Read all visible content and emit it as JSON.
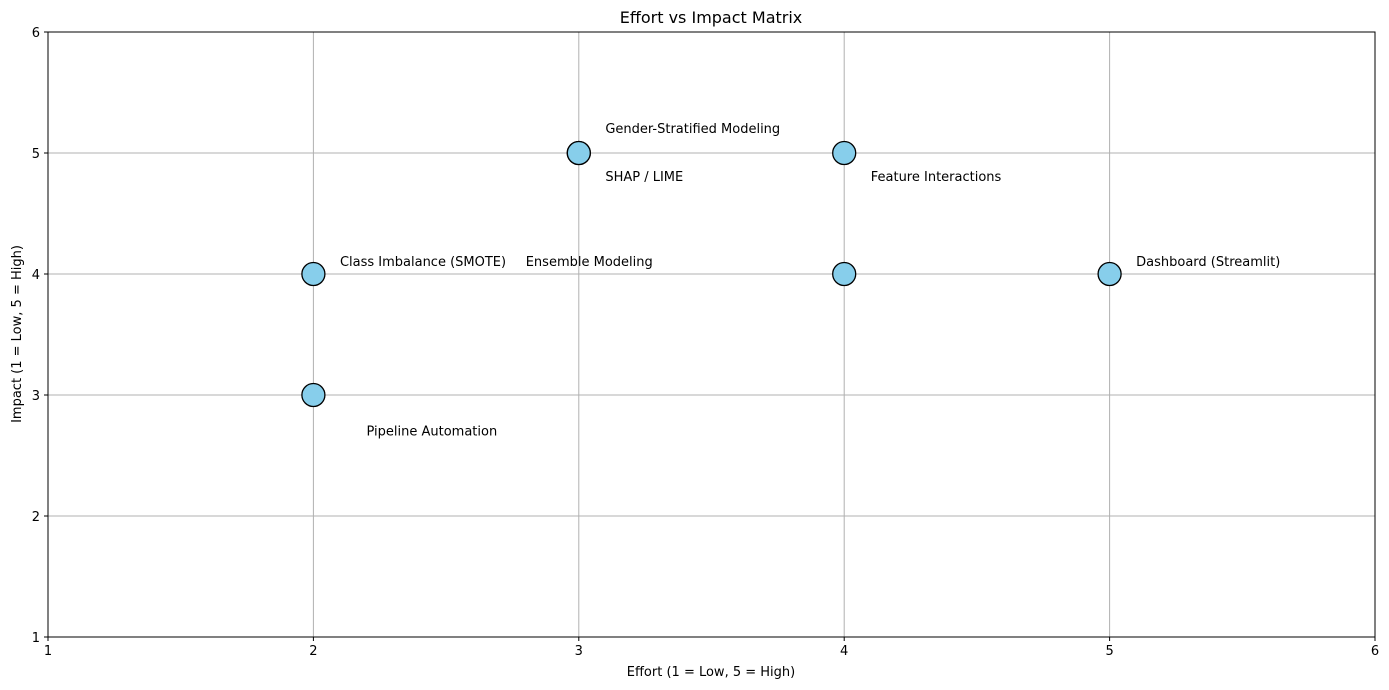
{
  "chart_data": {
    "type": "scatter",
    "title": "Effort vs Impact Matrix",
    "xlabel": "Effort (1 = Low, 5 = High)",
    "ylabel": "Impact (1 = Low, 5 = High)",
    "xlim": [
      1,
      6
    ],
    "ylim": [
      1,
      6
    ],
    "xticks": [
      "1",
      "2",
      "3",
      "4",
      "5",
      "6"
    ],
    "yticks": [
      "1",
      "2",
      "3",
      "4",
      "5",
      "6"
    ],
    "grid": true,
    "marker_color": "#87ceeb",
    "marker_edge_color": "#000000",
    "grid_color": "#b0b0b0",
    "points": [
      {
        "x": 2,
        "y": 4
      },
      {
        "x": 3,
        "y": 5
      },
      {
        "x": 3,
        "y": 5
      },
      {
        "x": 4,
        "y": 5
      },
      {
        "x": 4,
        "y": 4
      },
      {
        "x": 2,
        "y": 3
      },
      {
        "x": 5,
        "y": 4
      }
    ],
    "annotations": [
      {
        "text": "Class Imbalance (SMOTE)",
        "x": 2.1,
        "y": 4.1
      },
      {
        "text": "SHAP / LIME",
        "x": 3.1,
        "y": 4.8
      },
      {
        "text": "Gender-Stratified Modeling",
        "x": 3.1,
        "y": 5.2
      },
      {
        "text": "Feature Interactions",
        "x": 4.1,
        "y": 4.8
      },
      {
        "text": "Ensemble Modeling",
        "x": 2.8,
        "y": 4.1
      },
      {
        "text": "Pipeline Automation",
        "x": 2.2,
        "y": 2.7
      },
      {
        "text": "Dashboard (Streamlit)",
        "x": 5.1,
        "y": 4.1
      }
    ]
  }
}
